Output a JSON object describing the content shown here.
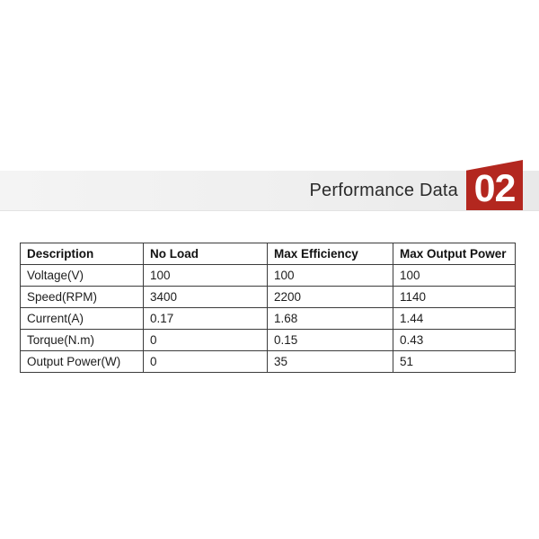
{
  "header": {
    "title": "Performance Data",
    "badge_number": "02",
    "badge_color": "#b3271f",
    "band_color": "#efefef"
  },
  "table": {
    "headers": [
      "Description",
      "No Load",
      "Max Efficiency",
      "Max Output Power"
    ],
    "rows": [
      [
        "Voltage(V)",
        "100",
        "100",
        "100"
      ],
      [
        "Speed(RPM)",
        "3400",
        "2200",
        "1140"
      ],
      [
        "Current(A)",
        "0.17",
        "1.68",
        "1.44"
      ],
      [
        "Torque(N.m)",
        "0",
        "0.15",
        "0.43"
      ],
      [
        "Output Power(W)",
        "0",
        "35",
        "51"
      ]
    ]
  }
}
